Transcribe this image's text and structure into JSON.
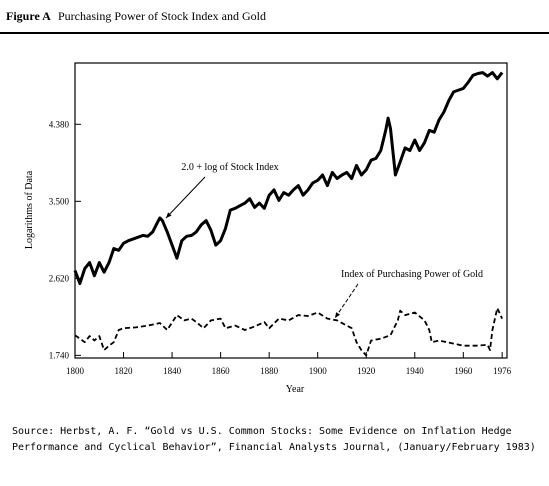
{
  "chart_data": {
    "type": "line",
    "figure_label": "Figure A",
    "title": "Purchasing Power of Stock Index and Gold",
    "x_label": "Year",
    "y_label": "Logarithms of Data",
    "xlim": [
      1800,
      1978
    ],
    "xticks": [
      1800,
      1820,
      1840,
      1860,
      1880,
      1900,
      1920,
      1940,
      1960,
      1976
    ],
    "ylim": [
      1.71,
      5.08
    ],
    "yticks": [
      {
        "value": 1.74,
        "label": "1.740"
      },
      {
        "value": 2.62,
        "label": "2.620"
      },
      {
        "value": 3.5,
        "label": "3.500"
      },
      {
        "value": 4.38,
        "label": "4.380"
      }
    ],
    "series": [
      {
        "name": "2.0 + log of Stock Index",
        "color": "#000000",
        "dashed": false,
        "x": [
          1800,
          1802,
          1804,
          1806,
          1808,
          1810,
          1812,
          1814,
          1816,
          1818,
          1820,
          1822,
          1825,
          1828,
          1830,
          1832,
          1834,
          1835,
          1836,
          1838,
          1840,
          1842,
          1844,
          1846,
          1848,
          1850,
          1852,
          1854,
          1856,
          1858,
          1860,
          1862,
          1864,
          1866,
          1868,
          1870,
          1872,
          1874,
          1876,
          1878,
          1880,
          1882,
          1884,
          1886,
          1888,
          1890,
          1892,
          1894,
          1896,
          1898,
          1900,
          1902,
          1904,
          1906,
          1908,
          1910,
          1912,
          1914,
          1916,
          1918,
          1920,
          1922,
          1924,
          1926,
          1928,
          1929,
          1930,
          1932,
          1934,
          1936,
          1938,
          1940,
          1942,
          1944,
          1946,
          1948,
          1950,
          1952,
          1954,
          1956,
          1958,
          1960,
          1962,
          1964,
          1966,
          1968,
          1970,
          1972,
          1974,
          1976
        ],
        "values": [
          2.71,
          2.56,
          2.73,
          2.8,
          2.65,
          2.8,
          2.69,
          2.8,
          2.96,
          2.94,
          3.02,
          3.05,
          3.08,
          3.11,
          3.1,
          3.15,
          3.26,
          3.31,
          3.28,
          3.15,
          3.0,
          2.85,
          3.05,
          3.1,
          3.11,
          3.15,
          3.23,
          3.28,
          3.17,
          3.0,
          3.05,
          3.19,
          3.4,
          3.42,
          3.45,
          3.48,
          3.53,
          3.43,
          3.48,
          3.42,
          3.57,
          3.63,
          3.51,
          3.6,
          3.57,
          3.63,
          3.68,
          3.57,
          3.63,
          3.71,
          3.74,
          3.8,
          3.68,
          3.83,
          3.76,
          3.8,
          3.83,
          3.76,
          3.91,
          3.8,
          3.86,
          3.97,
          3.99,
          4.08,
          4.31,
          4.45,
          4.33,
          3.8,
          3.95,
          4.11,
          4.08,
          4.2,
          4.08,
          4.17,
          4.31,
          4.29,
          4.43,
          4.52,
          4.65,
          4.75,
          4.77,
          4.79,
          4.86,
          4.94,
          4.96,
          4.97,
          4.93,
          4.97,
          4.9,
          4.97
        ]
      },
      {
        "name": "Index of Purchasing Power of Gold",
        "color": "#000000",
        "dashed": true,
        "x": [
          1800,
          1802,
          1804,
          1806,
          1808,
          1810,
          1812,
          1814,
          1816,
          1818,
          1820,
          1825,
          1830,
          1835,
          1838,
          1842,
          1845,
          1848,
          1850,
          1853,
          1856,
          1860,
          1862,
          1866,
          1870,
          1874,
          1878,
          1880,
          1884,
          1888,
          1892,
          1896,
          1900,
          1904,
          1908,
          1912,
          1914,
          1916,
          1918,
          1920,
          1922,
          1926,
          1930,
          1933,
          1934,
          1936,
          1940,
          1944,
          1946,
          1947,
          1950,
          1955,
          1960,
          1965,
          1970,
          1971,
          1972,
          1974,
          1976
        ],
        "values": [
          1.97,
          1.93,
          1.89,
          1.96,
          1.91,
          1.96,
          1.8,
          1.85,
          1.89,
          2.03,
          2.05,
          2.06,
          2.08,
          2.11,
          2.03,
          2.2,
          2.14,
          2.16,
          2.12,
          2.05,
          2.14,
          2.16,
          2.05,
          2.08,
          2.03,
          2.07,
          2.12,
          2.05,
          2.16,
          2.14,
          2.2,
          2.19,
          2.23,
          2.16,
          2.14,
          2.08,
          2.05,
          1.89,
          1.8,
          1.74,
          1.91,
          1.93,
          1.97,
          2.14,
          2.25,
          2.2,
          2.23,
          2.14,
          2.03,
          1.89,
          1.91,
          1.88,
          1.85,
          1.85,
          1.86,
          1.8,
          2.03,
          2.28,
          2.16
        ]
      }
    ],
    "source_lines": [
      "Source: Herbst, A. F. “Gold vs U.S. Common Stocks: Some Evidence on Inflation Hedge",
      "Performance and Cyclical Behavior”, Financial Analysts Journal, (January/February 1983)"
    ]
  }
}
